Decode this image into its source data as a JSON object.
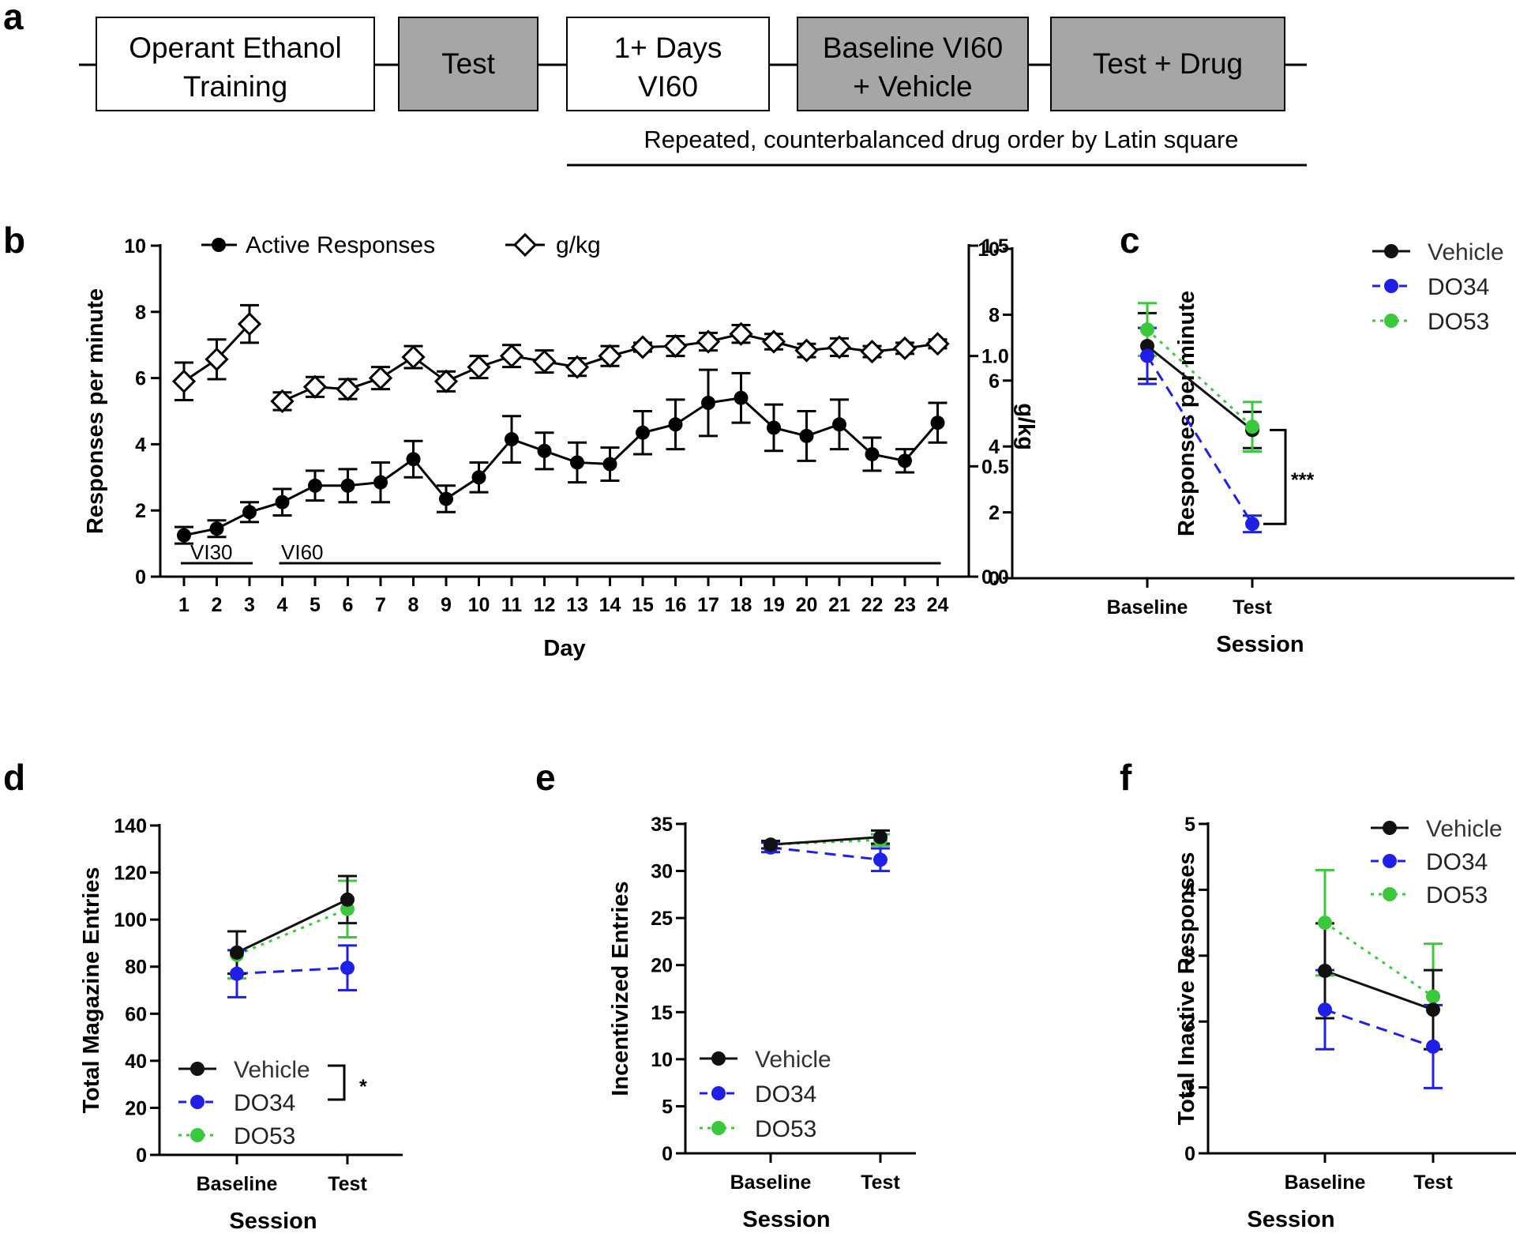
{
  "panel_labels": [
    "a",
    "b",
    "c",
    "d",
    "e",
    "f"
  ],
  "timeline": {
    "boxes": [
      {
        "lines": [
          "Operant Ethanol",
          "Training"
        ],
        "shaded": false
      },
      {
        "lines": [
          "Test"
        ],
        "shaded": true
      },
      {
        "lines": [
          "1+ Days",
          "VI60"
        ],
        "shaded": false
      },
      {
        "lines": [
          "Baseline VI60",
          "+ Vehicle"
        ],
        "shaded": true
      },
      {
        "lines": [
          "Test + Drug"
        ],
        "shaded": true
      }
    ],
    "note": "Repeated, counterbalanced drug order by Latin square"
  },
  "colors": {
    "vehicle": "#111111",
    "do34": "#1f1fe8",
    "do53": "#3cc83c",
    "shade": "#a6a6a6"
  },
  "chart_data": [
    {
      "panel": "b",
      "type": "line",
      "xlabel": "Day",
      "ylabel": "Responses per minute",
      "y2label": "g/kg",
      "ylim": [
        0,
        10
      ],
      "y2lim": [
        0,
        1.5
      ],
      "yticks": [
        "0",
        "2",
        "4",
        "6",
        "8",
        "10"
      ],
      "y2ticks": [
        "0.0",
        "0.5",
        "1.0",
        "1.5"
      ],
      "x": [
        "1",
        "2",
        "3",
        "4",
        "5",
        "6",
        "7",
        "8",
        "9",
        "10",
        "11",
        "12",
        "13",
        "14",
        "15",
        "16",
        "17",
        "18",
        "19",
        "20",
        "21",
        "22",
        "23",
        "24"
      ],
      "legend": [
        "Active Responses",
        "g/kg"
      ],
      "series": [
        {
          "name": "Active Responses",
          "axis": "left",
          "marker": "circle",
          "values": [
            1.25,
            1.45,
            1.95,
            2.25,
            2.75,
            2.75,
            2.85,
            3.55,
            2.35,
            3.0,
            4.15,
            3.8,
            3.45,
            3.4,
            4.35,
            4.6,
            5.25,
            5.4,
            4.5,
            4.25,
            4.6,
            3.7,
            3.5,
            4.65
          ],
          "errors": [
            0.25,
            0.25,
            0.3,
            0.4,
            0.45,
            0.5,
            0.6,
            0.55,
            0.4,
            0.45,
            0.7,
            0.55,
            0.6,
            0.5,
            0.65,
            0.75,
            1.0,
            0.75,
            0.7,
            0.75,
            0.75,
            0.5,
            0.35,
            0.6
          ]
        },
        {
          "name": "g/kg",
          "axis": "right",
          "marker": "diamond",
          "values": [
            0.885,
            0.985,
            1.145,
            0.795,
            0.86,
            0.85,
            0.9,
            0.995,
            0.885,
            0.95,
            1.0,
            0.975,
            0.95,
            1.0,
            1.04,
            1.045,
            1.065,
            1.1,
            1.065,
            1.025,
            1.04,
            1.02,
            1.035,
            1.055
          ],
          "errors": [
            0.085,
            0.09,
            0.085,
            0.04,
            0.045,
            0.045,
            0.05,
            0.05,
            0.045,
            0.05,
            0.05,
            0.05,
            0.04,
            0.045,
            0.02,
            0.045,
            0.04,
            0.04,
            0.035,
            0.03,
            0.04,
            0.025,
            0.025,
            0.02
          ]
        }
      ],
      "phases": [
        {
          "label": "VI30",
          "from": "1",
          "to": "3"
        },
        {
          "label": "VI60",
          "from": "4",
          "to": "24"
        }
      ]
    },
    {
      "panel": "c",
      "type": "line",
      "xlabel": "Session",
      "ylabel": "Responses per minute",
      "ylim": [
        0,
        10
      ],
      "yticks": [
        "0",
        "2",
        "4",
        "6",
        "8",
        "10"
      ],
      "categories": [
        "Baseline",
        "Test"
      ],
      "series": [
        {
          "name": "Vehicle",
          "values": [
            7.05,
            4.5
          ],
          "errors": [
            1.0,
            0.55
          ]
        },
        {
          "name": "DO34",
          "values": [
            6.75,
            1.65
          ],
          "errors": [
            0.85,
            0.25
          ]
        },
        {
          "name": "DO53",
          "values": [
            7.55,
            4.6
          ],
          "errors": [
            0.8,
            0.75
          ]
        }
      ],
      "significance": {
        "text": "***",
        "between": [
          "Vehicle",
          "DO34"
        ],
        "at": "Test"
      }
    },
    {
      "panel": "d",
      "type": "line",
      "xlabel": "Session",
      "ylabel": "Total Magazine Entries",
      "ylim": [
        0,
        140
      ],
      "yticks": [
        "0",
        "20",
        "40",
        "60",
        "80",
        "100",
        "120",
        "140"
      ],
      "categories": [
        "Baseline",
        "Test"
      ],
      "series": [
        {
          "name": "Vehicle",
          "values": [
            86,
            108.5
          ],
          "errors": [
            9,
            10
          ]
        },
        {
          "name": "DO34",
          "values": [
            77,
            79.5
          ],
          "errors": [
            10,
            9.5
          ]
        },
        {
          "name": "DO53",
          "values": [
            85,
            104.5
          ],
          "errors": [
            10,
            12
          ]
        }
      ],
      "significance": {
        "text": "*",
        "between": [
          "Vehicle",
          "DO34"
        ],
        "at": "legend"
      }
    },
    {
      "panel": "e",
      "type": "line",
      "xlabel": "Session",
      "ylabel": "Incentivized Entries",
      "ylim": [
        0,
        35
      ],
      "yticks": [
        "0",
        "5",
        "10",
        "15",
        "20",
        "25",
        "30",
        "35"
      ],
      "categories": [
        "Baseline",
        "Test"
      ],
      "series": [
        {
          "name": "Vehicle",
          "values": [
            32.8,
            33.6
          ],
          "errors": [
            0.4,
            0.7
          ]
        },
        {
          "name": "DO34",
          "values": [
            32.5,
            31.2
          ],
          "errors": [
            0.5,
            1.2
          ]
        },
        {
          "name": "DO53",
          "values": [
            32.8,
            33.3
          ],
          "errors": [
            0.4,
            0.6
          ]
        }
      ]
    },
    {
      "panel": "f",
      "type": "line",
      "xlabel": "Session",
      "ylabel": "Total Inactive Responses",
      "ylim": [
        0,
        5
      ],
      "yticks": [
        "0",
        "1",
        "2",
        "3",
        "4",
        "5"
      ],
      "categories": [
        "Baseline",
        "Test"
      ],
      "series": [
        {
          "name": "Vehicle",
          "values": [
            2.77,
            2.18
          ],
          "errors": [
            0.72,
            0.6
          ]
        },
        {
          "name": "DO34",
          "values": [
            2.18,
            1.62
          ],
          "errors": [
            0.6,
            0.63
          ]
        },
        {
          "name": "DO53",
          "values": [
            3.5,
            2.38
          ],
          "errors": [
            0.8,
            0.8
          ]
        }
      ]
    }
  ]
}
